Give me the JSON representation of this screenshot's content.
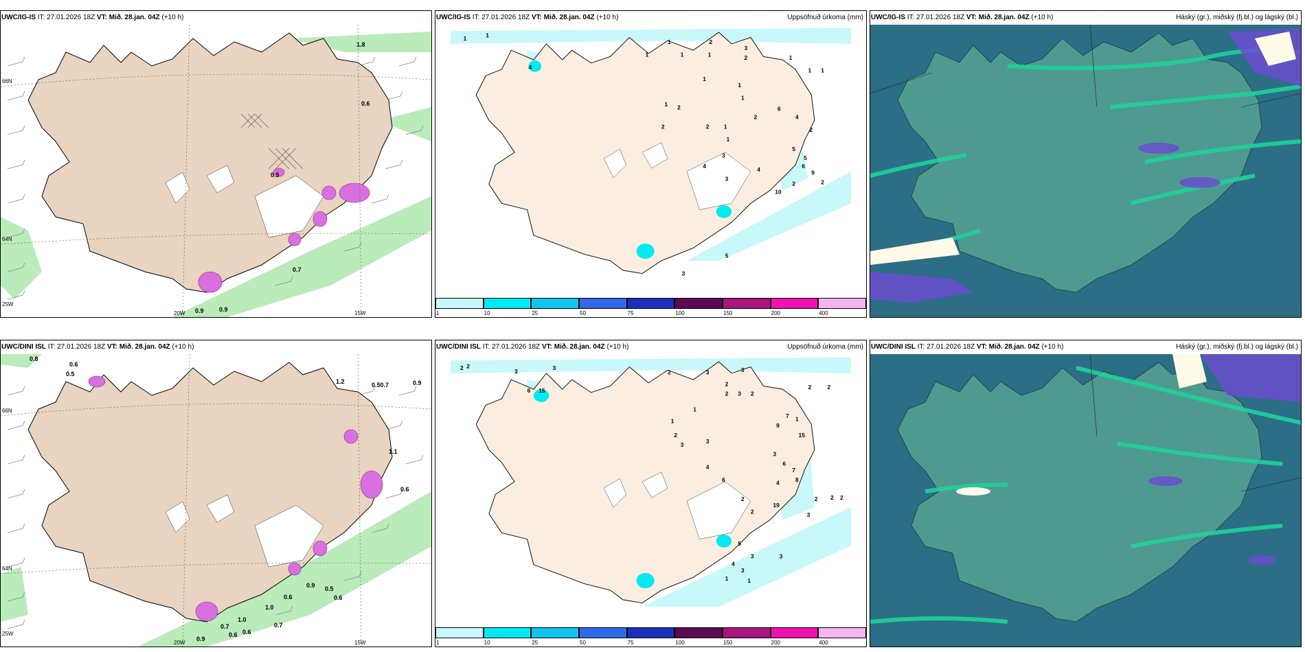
{
  "rows": [
    {
      "panels": [
        {
          "model": "UWC/IG-IS",
          "it_label": "IT:",
          "it": "27.01.2026 18Z",
          "vt_label": "VT:",
          "vt": "Mið. 28.jan. 04Z",
          "lead": "(+10 h)",
          "right": ""
        },
        {
          "model": "UWC/IG-IS",
          "it_label": "IT:",
          "it": "27.01.2026 18Z",
          "vt_label": "VT:",
          "vt": "Mið. 28.jan. 04Z",
          "lead": "(+10 h)",
          "right": "Uppsöfnuð úrkoma (mm)"
        },
        {
          "model": "UWC/IG-IS",
          "it_label": "IT:",
          "it": "27.01.2026 18Z",
          "vt_label": "VT:",
          "vt": "Mið. 28.jan. 04Z",
          "lead": "(+10 h)",
          "right": "Háský (gr.), miðský (fj.bl.) og lágský (bl.)"
        }
      ]
    },
    {
      "panels": [
        {
          "model": "UWC/DINI ISL",
          "it_label": "IT:",
          "it": "27.01.2026 18Z",
          "vt_label": "VT:",
          "vt": "Mið. 28.jan. 04Z",
          "lead": "(+10 h)",
          "right": ""
        },
        {
          "model": "UWC/DINI ISL",
          "it_label": "IT:",
          "it": "27.01.2026 18Z",
          "vt_label": "VT:",
          "vt": "Mið. 28.jan. 04Z",
          "lead": "(+10 h)",
          "right": "Uppsöfnuð úrkoma (mm)"
        },
        {
          "model": "UWC/DINI ISL",
          "it_label": "IT:",
          "it": "27.01.2026 18Z",
          "vt_label": "VT:",
          "vt": "Mið. 28.jan. 04Z",
          "lead": "(+10 h)",
          "right": "Háský (gr.), miðský (fj.bl.) og lágský (bl.)"
        }
      ]
    }
  ],
  "axis_labels": {
    "lat66": "66N",
    "lat64": "64N",
    "lon25": "25W",
    "lon20": "20W",
    "lon15": "15W"
  },
  "precip_legend": {
    "labels": [
      "1",
      "10",
      "25",
      "50",
      "75",
      "100",
      "150",
      "200",
      "400"
    ],
    "colors": [
      "#c8f8fa",
      "#00eaf2",
      "#12c4ee",
      "#2f6ae8",
      "#1c2fb8",
      "#5a0a52",
      "#a8167e",
      "#ee12b0",
      "#f4b6ee"
    ]
  },
  "wind_precip_values": {
    "top": [
      "1.8",
      "0.6",
      "0.7",
      "0.9",
      "0.9",
      "0.5"
    ],
    "bottom": [
      "0.8",
      "0.6",
      "0.5",
      "1.2",
      "0.50.7",
      "0.9",
      "1.1",
      "0.6",
      "0.9",
      "0.5",
      "0.6",
      "0.6",
      "1.0",
      "1.0",
      "0.7",
      "0.7",
      "0.6",
      "0.6",
      "0.9"
    ]
  },
  "precip_values": {
    "top": [
      "1",
      "1",
      "1",
      "2",
      "1",
      "1",
      "1",
      "2",
      "1",
      "3",
      "1",
      "1",
      "4",
      "1",
      "1",
      "1",
      "1",
      "2",
      "2",
      "1",
      "1",
      "2",
      "2",
      "6",
      "4",
      "2",
      "3",
      "5",
      "5",
      "6",
      "9",
      "2",
      "4",
      "3",
      "4",
      "10",
      "2",
      "5",
      "3"
    ],
    "bottom": [
      "2",
      "2",
      "3",
      "3",
      "2",
      "3",
      "3",
      "2",
      "2",
      "2",
      "6",
      "15",
      "2",
      "3",
      "2",
      "1",
      "1",
      "2",
      "3",
      "3",
      "7",
      "9",
      "1",
      "4",
      "6",
      "15",
      "3",
      "6",
      "7",
      "2",
      "2",
      "4",
      "8",
      "19",
      "2",
      "2",
      "2",
      "3",
      "5",
      "3",
      "3",
      "4",
      "3",
      "1",
      "1"
    ]
  },
  "colors": {
    "land": "#fbeee0",
    "land_wind": "#e8d4c0",
    "green": "#aee8ae",
    "cyan": "#c8f8fa",
    "cloud_bg": "#2b6e86",
    "cloud_mid": "#4f9a90",
    "cloud_green": "#1fd29a",
    "cloud_purple": "#6a4ecc"
  }
}
